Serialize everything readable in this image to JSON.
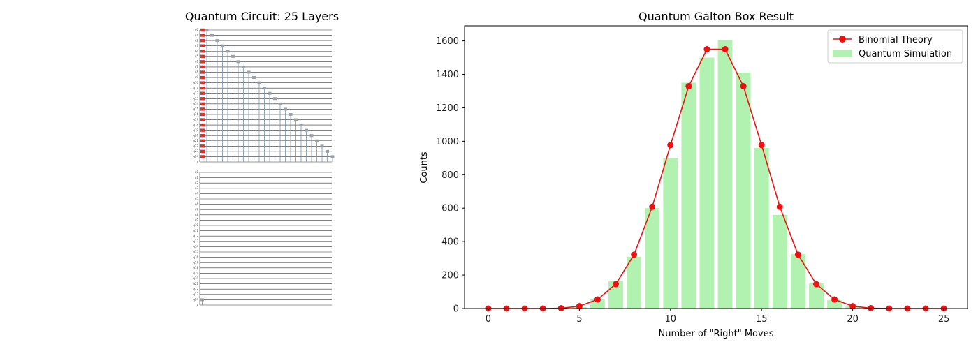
{
  "circuit_panel": {
    "title": "Quantum Circuit: 25 Layers"
  },
  "chart_data": {
    "type": "bar",
    "title": "Quantum Galton Box Result",
    "xlabel": "Number of \"Right\" Moves",
    "ylabel": "Counts",
    "xlim": [
      -1.3,
      26.3
    ],
    "ylim": [
      0,
      1690
    ],
    "xticks": [
      0,
      5,
      10,
      15,
      20,
      25
    ],
    "yticks": [
      0,
      200,
      400,
      600,
      800,
      1000,
      1200,
      1400,
      1600
    ],
    "grid": false,
    "legend_position": "top-right",
    "x": [
      0,
      1,
      2,
      3,
      4,
      5,
      6,
      7,
      8,
      9,
      10,
      11,
      12,
      13,
      14,
      15,
      16,
      17,
      18,
      19,
      20,
      21,
      22,
      23,
      24,
      25
    ],
    "series": [
      {
        "name": "Quantum Simulation",
        "kind": "bar",
        "color": "#b2f2b0",
        "values": [
          0,
          0,
          0,
          0,
          0,
          8,
          55,
          165,
          310,
          600,
          900,
          1350,
          1500,
          1605,
          1410,
          960,
          560,
          325,
          150,
          50,
          12,
          2,
          0,
          0,
          0,
          0
        ]
      },
      {
        "name": "Binomial Theory",
        "kind": "line",
        "color": "#ee1111",
        "values": [
          0,
          0,
          0,
          0,
          2,
          14,
          54,
          146,
          322,
          608,
          977,
          1329,
          1550,
          1550,
          1329,
          977,
          608,
          322,
          146,
          54,
          14,
          2,
          0,
          0,
          0,
          0
        ]
      }
    ]
  }
}
